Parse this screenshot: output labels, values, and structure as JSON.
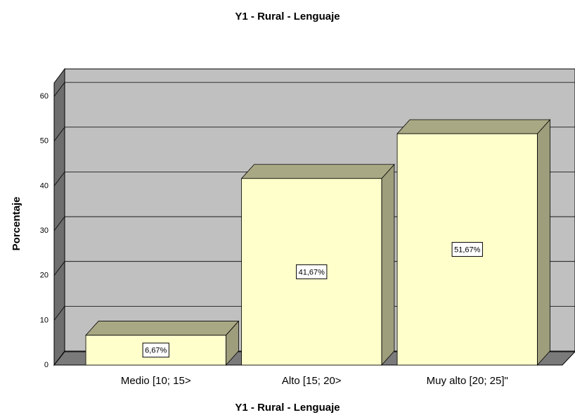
{
  "chart_data": {
    "type": "bar3d",
    "title": "Y1 - Rural  - Lenguaje",
    "x_label": "Y1 - Rural  - Lenguaje",
    "y_label": "Porcentaje",
    "categories": [
      "Medio [10; 15>",
      "Alto [15; 20>",
      "Muy alto [20; 25]\""
    ],
    "values": [
      6.67,
      41.67,
      51.67
    ],
    "value_labels": [
      "6,67%",
      "41,67%",
      "51,67%"
    ],
    "color": "#ffffcc",
    "ylim": [
      0,
      63
    ],
    "yticks": [
      0,
      10,
      20,
      30,
      40,
      50,
      60
    ],
    "grid": true
  }
}
